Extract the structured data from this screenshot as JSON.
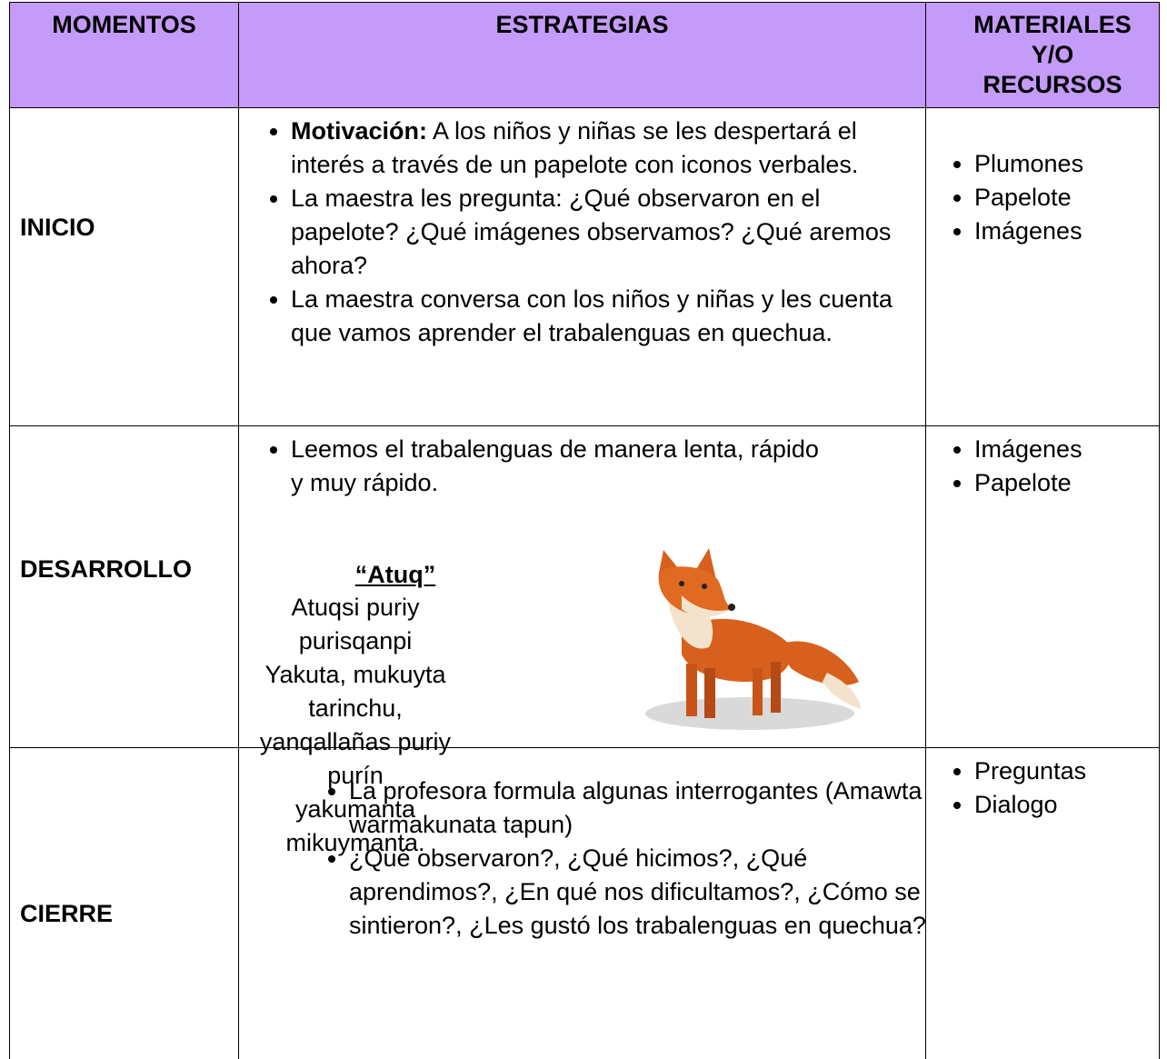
{
  "header": [
    "MOMENTOS",
    "ESTRATEGIAS",
    "MATERIALES Y/O RECURSOS"
  ],
  "rows": [
    {
      "moment": "INICIO",
      "strategies": [
        {
          "lead": "Motivación:",
          "text": "A los niños y niñas se les despertará el interés a través de un papelote con iconos verbales."
        },
        "La maestra les pregunta: ¿Qué observaron en el papelote? ¿Qué imágenes observamos? ¿Qué aremos ahora?",
        "La maestra conversa con los niños y niñas y les cuenta que vamos aprender el trabalenguas en quechua."
      ],
      "materials": [
        "Plumones",
        "Papelote",
        "Imágenes"
      ]
    },
    {
      "moment": "DESARROLLO",
      "strategies": [
        " Leemos el trabalenguas de manera lenta, rápido y muy rápido."
      ],
      "poem_title": "“Atuq”",
      "poem": [
        "Atuqsi puriy purisqanpi",
        "Yakuta, mukuyta",
        "tarinchu,",
        "yanqallañas puriy purín",
        "yakumanta",
        "mikuymanta."
      ],
      "materials": [
        "Imágenes",
        "Papelote"
      ]
    },
    {
      "moment": "CIERRE",
      "strategies": [
        "La profesora formula algunas interrogantes (Amawta warmakunata tapun)",
        "¿Qué observaron?, ¿Qué hicimos?, ¿Qué aprendimos?, ¿En qué nos dificultamos?, ¿Cómo se sintieron?, ¿Les gustó los trabalenguas en quechua?"
      ],
      "materials": [
        "Preguntas",
        "Dialogo"
      ]
    }
  ]
}
